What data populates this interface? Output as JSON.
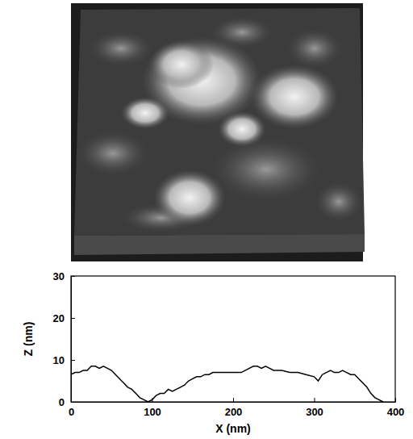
{
  "chart_data": {
    "type": "line",
    "x_label": "X (nm)",
    "y_label": "Z (nm)",
    "x": [
      0,
      5,
      10,
      15,
      20,
      25,
      30,
      35,
      40,
      45,
      50,
      55,
      60,
      65,
      70,
      75,
      80,
      85,
      90,
      95,
      100,
      105,
      110,
      115,
      120,
      125,
      130,
      135,
      140,
      145,
      150,
      155,
      160,
      165,
      170,
      175,
      180,
      190,
      200,
      210,
      220,
      225,
      230,
      235,
      240,
      245,
      250,
      260,
      270,
      280,
      290,
      300,
      305,
      310,
      315,
      320,
      325,
      330,
      335,
      340,
      345,
      350,
      355,
      360,
      365,
      370,
      375,
      380,
      385
    ],
    "values": [
      6.5,
      7,
      7,
      7.5,
      7.5,
      8.5,
      8.5,
      8,
      8.5,
      8,
      7.5,
      6.5,
      5.5,
      4.5,
      3.5,
      3,
      2,
      1,
      0.5,
      0,
      0.5,
      1.5,
      2,
      2,
      3,
      2.5,
      3,
      3.5,
      4,
      5,
      5.5,
      6,
      6,
      6.5,
      6.5,
      7,
      7,
      7,
      7,
      7,
      8,
      8.5,
      8.5,
      8,
      8.5,
      8,
      7.5,
      7.5,
      7,
      7,
      6.5,
      6,
      5,
      6.5,
      7,
      7.5,
      7,
      7,
      7.5,
      7,
      6.5,
      6.5,
      5.5,
      4.5,
      3.5,
      2,
      1,
      0.5,
      0
    ],
    "color": "#000000",
    "xlim": [
      0,
      400
    ],
    "xticks": [
      0,
      100,
      200,
      300,
      400
    ],
    "ylim": [
      0,
      30
    ],
    "yticks": [
      0,
      10,
      20,
      30
    ],
    "grid": false
  }
}
